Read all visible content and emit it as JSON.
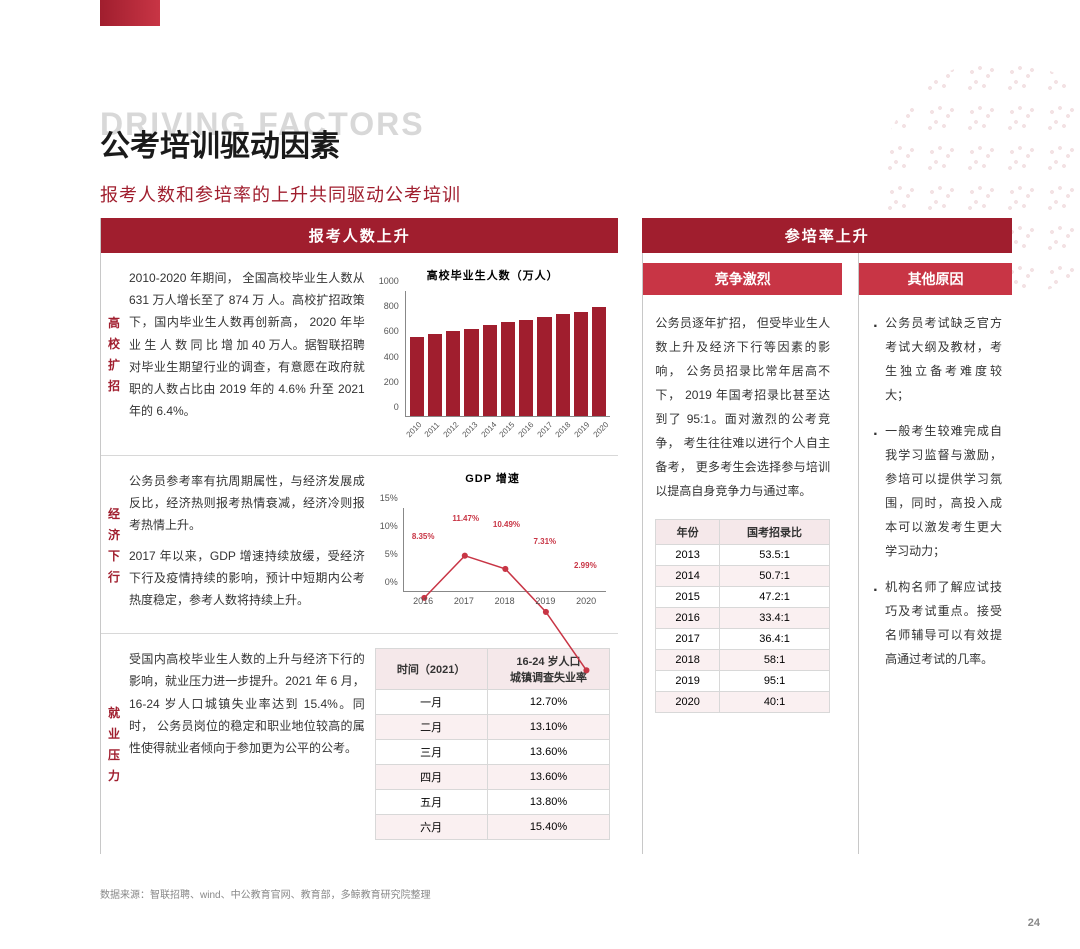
{
  "header": {
    "ghost_title": "DRIVING FACTORS",
    "title": "公考培训驱动因素",
    "subtitle": "报考人数和参培率的上升共同驱动公考培训"
  },
  "left": {
    "band": "报考人数上升",
    "sections": [
      {
        "label": [
          "高",
          "校",
          "扩",
          "招"
        ],
        "text": [
          "2010-2020 年期间， 全国高校毕业生人数从 631 万人增长至了 874 万 人。高校扩招政策下，国内毕业生人数再创新高， 2020 年毕业 生 人 数 同 比 增 加 40 万人。据智联招聘对毕业生期望行业的调查，有意愿在政府就职的人数占比由 2019 年的 4.6% 升至 2021 年的 6.4%。"
        ],
        "chart": {
          "type": "bar",
          "title": "高校毕业生人数（万人）",
          "categories": [
            "2010",
            "2011",
            "2012",
            "2013",
            "2014",
            "2015",
            "2016",
            "2017",
            "2018",
            "2019",
            "2020"
          ],
          "values": [
            631,
            660,
            680,
            700,
            727,
            749,
            765,
            795,
            820,
            834,
            874
          ],
          "ylim": [
            0,
            1000
          ],
          "yticks": [
            0,
            200,
            400,
            600,
            800,
            1000
          ],
          "bar_color": "#a01e2e"
        }
      },
      {
        "label": [
          "经",
          "济",
          "下",
          "行"
        ],
        "text": [
          "公务员参考率有抗周期属性，与经济发展成反比，经济热则报考热情衰减，经济冷则报考热情上升。",
          "2017 年以来，GDP 增速持续放缓，受经济下行及疫情持续的影响，预计中短期内公考热度稳定，参考人数将持续上升。"
        ],
        "chart": {
          "type": "line",
          "title": "GDP 增速",
          "categories": [
            "2016",
            "2017",
            "2018",
            "2019",
            "2020"
          ],
          "values": [
            8.35,
            11.47,
            10.49,
            7.31,
            2.99
          ],
          "labels": [
            "8.35%",
            "11.47%",
            "10.49%",
            "7.31%",
            "2.99%"
          ],
          "ylim": [
            0,
            15
          ],
          "yticks": [
            0,
            5,
            10,
            15
          ],
          "ytick_labels": [
            "0%",
            "5%",
            "10%",
            "15%"
          ],
          "line_color": "#c83545"
        }
      },
      {
        "label": [
          "就",
          "业",
          "压",
          "力"
        ],
        "text": [
          "受国内高校毕业生人数的上升与经济下行的影响，就业压力进一步提升。2021 年 6 月，16-24 岁人口城镇失业率达到 15.4%。同时， 公务员岗位的稳定和职业地位较高的属性使得就业者倾向于参加更为公平的公考。"
        ],
        "table": {
          "headers": [
            "时间（2021）",
            "16-24 岁人口\n城镇调查失业率"
          ],
          "rows": [
            [
              "一月",
              "12.70%"
            ],
            [
              "二月",
              "13.10%"
            ],
            [
              "三月",
              "13.60%"
            ],
            [
              "四月",
              "13.60%"
            ],
            [
              "五月",
              "13.80%"
            ],
            [
              "六月",
              "15.40%"
            ]
          ]
        }
      }
    ]
  },
  "right": {
    "band": "参培率上升",
    "competition": {
      "sub_band": "竞争激烈",
      "text": "公务员逐年扩招， 但受毕业生人数上升及经济下行等因素的影响， 公务员招录比常年居高不下， 2019 年国考招录比甚至达到了 95:1。面对激烈的公考竞争， 考生往往难以进行个人自主备考， 更多考生会选择参与培训以提高自身竞争力与通过率。",
      "table": {
        "headers": [
          "年份",
          "国考招录比"
        ],
        "rows": [
          [
            "2013",
            "53.5:1"
          ],
          [
            "2014",
            "50.7:1"
          ],
          [
            "2015",
            "47.2:1"
          ],
          [
            "2016",
            "33.4:1"
          ],
          [
            "2017",
            "36.4:1"
          ],
          [
            "2018",
            "58:1"
          ],
          [
            "2019",
            "95:1"
          ],
          [
            "2020",
            "40:1"
          ]
        ]
      }
    },
    "other": {
      "sub_band": "其他原因",
      "bullets": [
        "公务员考试缺乏官方考试大纲及教材，考生独立备考难度较大；",
        "一般考生较难完成自我学习监督与激励，参培可以提供学习氛围，同时，高投入成本可以激发考生更大学习动力；",
        "机构名师了解应试技巧及考试重点。接受名师辅导可以有效提高通过考试的几率。"
      ]
    }
  },
  "source": "数据来源：智联招聘、wind、中公教育官网、教育部，多鲸教育研究院整理",
  "page_number": "24"
}
